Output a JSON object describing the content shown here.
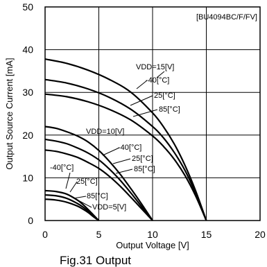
{
  "chart_data": {
    "type": "line",
    "title": "",
    "part_label": "[BU4094BC/F/FV]",
    "xlabel": "Output Voltage [V]",
    "ylabel": "Output Source Current [mA]",
    "caption": "Fig.31 Output",
    "xlim": [
      0,
      20
    ],
    "ylim": [
      0,
      50
    ],
    "xticks": [
      0,
      5,
      10,
      15,
      20
    ],
    "yticks": [
      0,
      10,
      20,
      30,
      40,
      50
    ],
    "grid": true,
    "series": [
      {
        "vdd": "15",
        "temp": "-40",
        "x": [
          0,
          2,
          4,
          6,
          8,
          10,
          11,
          12,
          13,
          14,
          15
        ],
        "y": [
          37.8,
          36.8,
          35.2,
          33.0,
          30.0,
          25.2,
          22.0,
          18.0,
          13.0,
          7.0,
          0
        ]
      },
      {
        "vdd": "15",
        "temp": "25",
        "x": [
          0,
          2,
          4,
          6,
          8,
          10,
          11,
          12,
          13,
          14,
          15
        ],
        "y": [
          33.0,
          32.2,
          30.8,
          28.8,
          26.0,
          22.0,
          19.4,
          16.0,
          11.8,
          6.4,
          0
        ]
      },
      {
        "vdd": "15",
        "temp": "85",
        "x": [
          0,
          2,
          4,
          6,
          8,
          10,
          11,
          12,
          13,
          14,
          15
        ],
        "y": [
          29.6,
          29.0,
          27.8,
          26.0,
          23.5,
          19.8,
          17.4,
          14.4,
          10.6,
          5.8,
          0
        ]
      },
      {
        "vdd": "10",
        "temp": "-40",
        "x": [
          0,
          1,
          2,
          3,
          4,
          5,
          6,
          7,
          8,
          9,
          10
        ],
        "y": [
          22.0,
          21.6,
          20.8,
          19.8,
          18.4,
          16.4,
          13.8,
          10.8,
          7.4,
          3.8,
          0
        ]
      },
      {
        "vdd": "10",
        "temp": "25",
        "x": [
          0,
          1,
          2,
          3,
          4,
          5,
          6,
          7,
          8,
          9,
          10
        ],
        "y": [
          19.0,
          18.6,
          18.0,
          17.0,
          15.8,
          14.2,
          12.0,
          9.4,
          6.4,
          3.2,
          0
        ]
      },
      {
        "vdd": "10",
        "temp": "85",
        "x": [
          0,
          1,
          2,
          3,
          4,
          5,
          6,
          7,
          8,
          9,
          10
        ],
        "y": [
          16.5,
          16.2,
          15.6,
          14.8,
          13.6,
          12.2,
          10.3,
          8.0,
          5.4,
          2.7,
          0
        ]
      },
      {
        "vdd": "5",
        "temp": "-40",
        "x": [
          0,
          1,
          2,
          3,
          3.5,
          4,
          4.5,
          5
        ],
        "y": [
          7.0,
          6.8,
          6.2,
          4.8,
          3.8,
          2.6,
          1.3,
          0
        ]
      },
      {
        "vdd": "5",
        "temp": "25",
        "x": [
          0,
          1,
          2,
          3,
          3.5,
          4,
          4.5,
          5
        ],
        "y": [
          6.0,
          5.8,
          5.2,
          4.0,
          3.2,
          2.2,
          1.1,
          0
        ]
      },
      {
        "vdd": "5",
        "temp": "85",
        "x": [
          0,
          1,
          2,
          3,
          3.5,
          4,
          4.5,
          5
        ],
        "y": [
          5.0,
          4.8,
          4.3,
          3.4,
          2.7,
          1.9,
          0.9,
          0
        ]
      }
    ],
    "annotations": {
      "vdd15": "VDD=15[V]",
      "vdd15_t1": "-40[°C]",
      "vdd15_t2": "25[°C]",
      "vdd15_t3": "85[°C]",
      "vdd10": "VDD=10[V]",
      "vdd10_t1": "-40[°C]",
      "vdd10_t2": "25[°C]",
      "vdd10_t3": "85[°C]",
      "vdd5": "VDD=5[V]",
      "vdd5_t1": "-40[°C]",
      "vdd5_t2": "25[°C]",
      "vdd5_t3": "85[°C]"
    }
  }
}
